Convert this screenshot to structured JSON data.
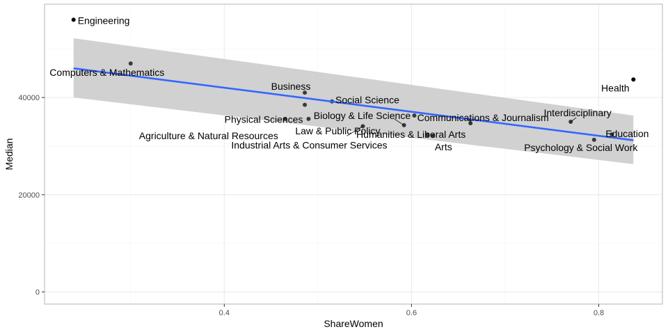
{
  "chart_data": {
    "type": "scatter",
    "title": "",
    "xlabel": "ShareWomen",
    "ylabel": "Median",
    "xlim": [
      0.208,
      0.868
    ],
    "ylim": [
      -2500,
      59200
    ],
    "x_ticks": [
      {
        "value": 0.4,
        "label": "0.4"
      },
      {
        "value": 0.6,
        "label": "0.6"
      },
      {
        "value": 0.8,
        "label": "0.8"
      }
    ],
    "x_minor": [
      0.3,
      0.5,
      0.7
    ],
    "y_ticks": [
      {
        "value": 0,
        "label": "0"
      },
      {
        "value": 20000,
        "label": "20000"
      },
      {
        "value": 40000,
        "label": "40000"
      }
    ],
    "y_minor": [
      10000,
      30000,
      50000
    ],
    "grid": true,
    "points": [
      {
        "label": "Engineering",
        "x": 0.239,
        "y": 56000
      },
      {
        "label": "Computers & Mathematics",
        "x": 0.3,
        "y": 47000
      },
      {
        "label": "Business",
        "x": 0.486,
        "y": 41000
      },
      {
        "label": "Social Science",
        "x": 0.515,
        "y": 39200
      },
      {
        "label": "Physical Sciences",
        "x": 0.486,
        "y": 38500
      },
      {
        "label": "Biology & Life Science",
        "x": 0.603,
        "y": 36300
      },
      {
        "label": "Agriculture & Natural Resources",
        "x": 0.465,
        "y": 35600
      },
      {
        "label": "Law & Public Policy",
        "x": 0.49,
        "y": 35600
      },
      {
        "label": "Communications & Journalism",
        "x": 0.663,
        "y": 34700
      },
      {
        "label": "Humanities & Liberal Arts",
        "x": 0.592,
        "y": 34300
      },
      {
        "label": "Industrial Arts & Consumer Services",
        "x": 0.548,
        "y": 34100
      },
      {
        "label": "Arts",
        "x": 0.617,
        "y": 32300
      },
      {
        "label": "Interdisciplinary",
        "x": 0.77,
        "y": 35000
      },
      {
        "label": "Education",
        "x": 0.814,
        "y": 32400
      },
      {
        "label": "Psychology & Social Work",
        "x": 0.795,
        "y": 31300
      },
      {
        "label": "Health",
        "x": 0.837,
        "y": 43700
      },
      {
        "label": "",
        "x": 0.623,
        "y": 32100
      }
    ],
    "trend": {
      "method": "lm",
      "color": "#3366ff",
      "x": [
        0.239,
        0.837
      ],
      "y": [
        46000,
        31200
      ],
      "band_lower": [
        40000,
        26300
      ],
      "band_upper": [
        52200,
        36300
      ],
      "band_color": "#cccccc"
    },
    "colors": {
      "point": "#000000",
      "panel_border": "#b3b3b3",
      "grid_major": "#ebebeb",
      "grid_minor": "#f5f5f5"
    }
  }
}
